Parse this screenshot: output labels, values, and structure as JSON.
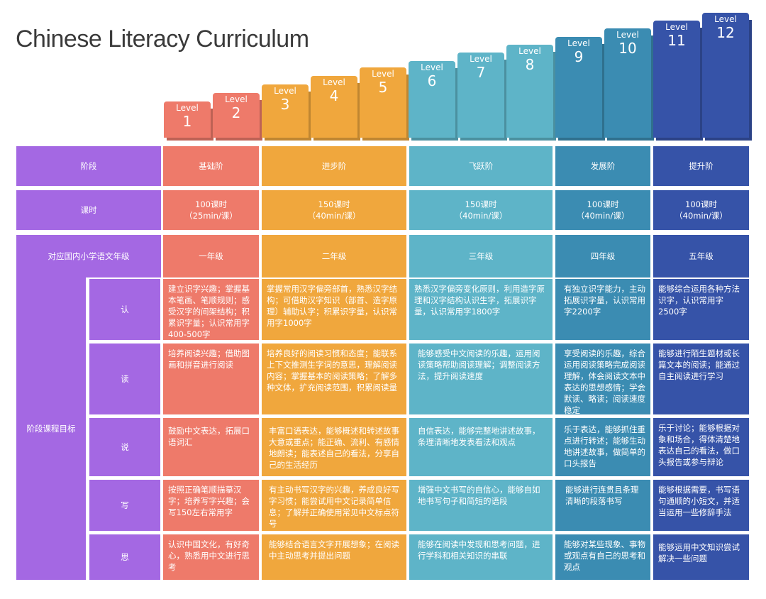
{
  "title": "Chinese Literacy Curriculum",
  "level_word": "Level",
  "levels": [
    {
      "num": "1",
      "color": "#ee7a6a"
    },
    {
      "num": "2",
      "color": "#ee7a6a"
    },
    {
      "num": "3",
      "color": "#f0a73d"
    },
    {
      "num": "4",
      "color": "#f0a73d"
    },
    {
      "num": "5",
      "color": "#f0a73d"
    },
    {
      "num": "6",
      "color": "#5eb4c8"
    },
    {
      "num": "7",
      "color": "#5eb4c8"
    },
    {
      "num": "8",
      "color": "#5eb4c8"
    },
    {
      "num": "9",
      "color": "#3b8cb2"
    },
    {
      "num": "10",
      "color": "#3b8cb2"
    },
    {
      "num": "11",
      "color": "#3653a8"
    },
    {
      "num": "12",
      "color": "#3653a8"
    }
  ],
  "rows": {
    "stage": "阶段",
    "hours": "课时",
    "grade": "对应国内小学语文年级",
    "goals": "阶段课程目标"
  },
  "sub_rows": {
    "ren": "认",
    "du": "读",
    "shuo": "说",
    "xie": "写",
    "si": "思"
  },
  "columns": [
    {
      "stage": "基础阶",
      "hours_1": "100课时",
      "hours_2": "（25min/课）",
      "grade": "一年级",
      "ren": "建立识字兴趣；掌握基本笔画、笔顺规则；感受汉字的间架结构；积累识字量；认识常用字400-500字",
      "du": "培养阅读兴趣；借助图画和拼音进行阅读",
      "shuo": "鼓励中文表达，拓展口语词汇",
      "xie": "按照正确笔顺描摹汉字；培养写字兴趣；会写150左右常用字",
      "si": "认识中国文化，有好奇心，熟悉用中文进行思考"
    },
    {
      "stage": "进步阶",
      "hours_1": "150课时",
      "hours_2": "（40min/课）",
      "grade": "二年级",
      "ren": "掌握常用汉字偏旁部首，熟悉汉字结构；可借助汉字知识（部首、造字原理）辅助认字；积累识字量，认识常用字1000字",
      "du": "培养良好的阅读习惯和态度；能联系上下文推测生字词的意思，理解阅读内容；掌握基本的阅读策略；了解多种文体，扩充阅读范围，积累阅读量",
      "shuo": "丰富口语表达，能够概述和转述故事大意或重点；能正确、流利、有感情地朗读；能表述自己的看法，分享自己的生活经历",
      "xie": "有主动书写汉字的兴趣，养成良好写字习惯；能尝试用中文记录简单信息；了解并正确使用常见中文标点符号",
      "si": "能够结合语言文字开展想象；在阅读中主动思考并提出问题"
    },
    {
      "stage": "飞跃阶",
      "hours_1": "150课时",
      "hours_2": "（40min/课）",
      "grade": "三年级",
      "ren": "熟悉汉字偏旁变化原则，利用造字原理和汉字结构认识生字，拓展识字量，认识常用字1800字",
      "du": "能够感受中文阅读的乐趣，运用阅读策略帮助阅读理解；调整阅读方法，提升阅读速度",
      "shuo": "自信表达，能够完整地讲述故事，条理清晰地发表看法和观点",
      "xie": "增强中文书写的自信心，能够自如地书写句子和简短的语段",
      "si": "能够在阅读中发现和思考问题，进行学科和相关知识的串联"
    },
    {
      "stage": "发展阶",
      "hours_1": "100课时",
      "hours_2": "（40min/课）",
      "grade": "四年级",
      "ren": "有独立识字能力，主动拓展识字量，认识常用字2200字",
      "du": "享受阅读的乐趣，综合运用阅读策略完成阅读理解，体会阅读文本中表达的思想感情；学会默读、略读；阅读速度稳定",
      "shuo": "乐于表达，能够抓住重点进行转述；能够生动地讲述故事，做简单的口头报告",
      "xie": "能够进行连贯且条理清晰的段落书写",
      "si": "能够对某些现象、事物或观点有自己的思考和观点"
    },
    {
      "stage": "提升阶",
      "hours_1": "100课时",
      "hours_2": "（40min/课）",
      "grade": "五年级",
      "ren": "能够综合运用各种方法识字，认识常用字2500字",
      "du": "能够进行陌生题材或长篇文本的阅读；能通过自主阅读进行学习",
      "shuo": "乐于讨论；能够根据对象和场合，得体清楚地表达自己的看法，做口头报告或参与辩论",
      "xie": "能够根据需要，书写语句通顺的小短文，并适当运用一些修辞手法",
      "si": "能够运用中文知识尝试解决一些问题"
    }
  ]
}
